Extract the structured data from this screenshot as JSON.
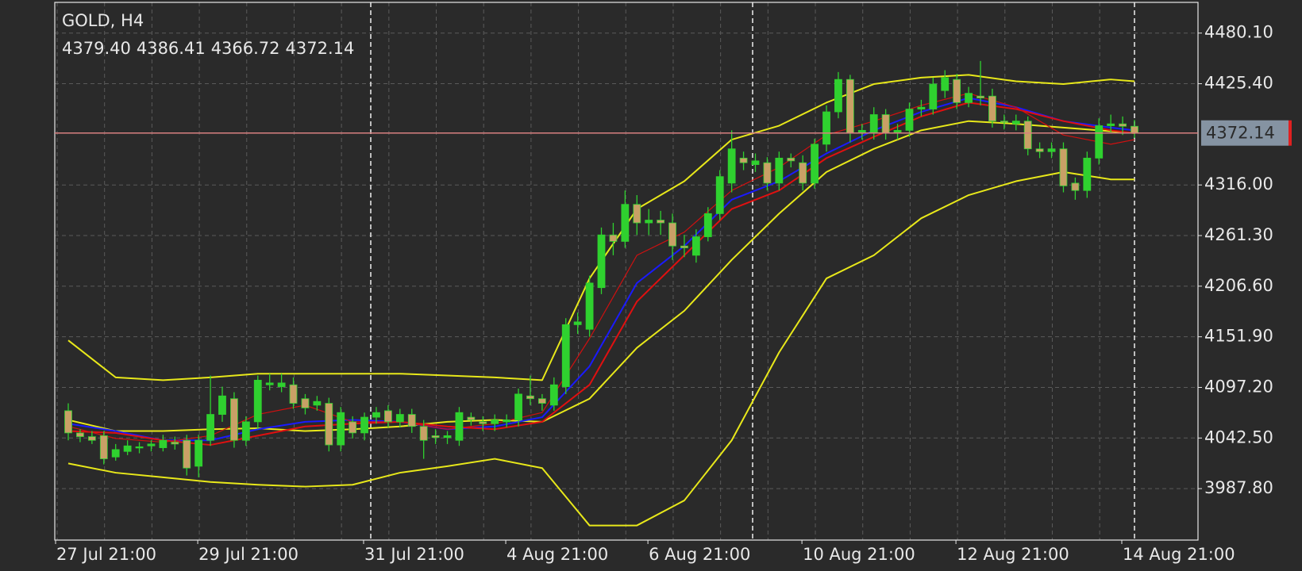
{
  "chart_data": {
    "type": "candlestick",
    "title": "GOLD, H4",
    "info_labels": [
      "4379.40",
      "4386.41",
      "4366.72",
      "4372.14"
    ],
    "categories": [
      "27 Jul 21:00",
      null,
      null,
      null,
      null,
      null,
      null,
      null,
      null,
      null,
      null,
      null,
      "29 Jul 21:00",
      null,
      null,
      null,
      null,
      null,
      null,
      null,
      null,
      null,
      null,
      null,
      null,
      null,
      "31 Jul 21:00",
      null,
      null,
      null,
      null,
      null,
      null,
      null,
      null,
      null,
      null,
      null,
      "4 Aug 21:00",
      null,
      null,
      null,
      null,
      null,
      null,
      null,
      null,
      null,
      null,
      null,
      "6 Aug 21:00",
      null,
      null,
      null,
      null,
      null,
      null,
      null,
      null,
      null,
      null,
      null,
      null,
      "10 Aug 21:00",
      null,
      null,
      null,
      null,
      null,
      null,
      null,
      null,
      null,
      null,
      null,
      null,
      "12 Aug 21:00",
      null,
      null,
      null,
      null,
      null,
      null,
      null,
      null,
      null,
      null,
      null,
      null,
      null,
      "14 Aug 21:00"
    ],
    "open": [
      4072,
      4048,
      4044,
      4045,
      4022,
      4028,
      4032,
      4034,
      4032,
      4038,
      4040,
      4012,
      4040,
      4068,
      4085,
      4040,
      4060,
      4100,
      4098,
      4100,
      4085,
      4078,
      4080,
      4035,
      4060,
      4048,
      4065,
      4072,
      4060,
      4068,
      4055,
      4045,
      4043,
      4040,
      4065,
      4060,
      4058,
      4060,
      4062,
      4088,
      4085,
      4078,
      4098,
      4165,
      4160,
      4205,
      4262,
      4255,
      4295,
      4275,
      4278,
      4275,
      4250,
      4240,
      4260,
      4285,
      4318,
      4345,
      4338,
      4340,
      4318,
      4345,
      4340,
      4318,
      4360,
      4395,
      4430,
      4372,
      4372,
      4392,
      4372,
      4375,
      4398,
      4398,
      4418,
      4430,
      4405,
      4412,
      4412,
      4385,
      4382,
      4385,
      4355,
      4352,
      4355,
      4318,
      4310,
      4345,
      4380,
      4382,
      4379.4
    ],
    "high": [
      4080,
      4052,
      4050,
      4050,
      4036,
      4040,
      4038,
      4040,
      4046,
      4044,
      4046,
      4046,
      4110,
      4098,
      4092,
      4066,
      4110,
      4112,
      4112,
      4108,
      4090,
      4088,
      4086,
      4076,
      4066,
      4070,
      4076,
      4078,
      4074,
      4074,
      4062,
      4052,
      4050,
      4076,
      4070,
      4066,
      4068,
      4068,
      4096,
      4110,
      4090,
      4108,
      4172,
      4178,
      4218,
      4270,
      4275,
      4310,
      4305,
      4290,
      4288,
      4285,
      4262,
      4268,
      4292,
      4332,
      4375,
      4352,
      4350,
      4346,
      4352,
      4350,
      4348,
      4366,
      4402,
      4438,
      4435,
      4382,
      4400,
      4398,
      4382,
      4405,
      4408,
      4432,
      4440,
      4436,
      4422,
      4450,
      4420,
      4392,
      4392,
      4390,
      4362,
      4362,
      4362,
      4324,
      4352,
      4388,
      4392,
      4390,
      4386.41
    ],
    "low": [
      4040,
      4038,
      4036,
      4014,
      4018,
      4024,
      4026,
      4028,
      4028,
      4030,
      4002,
      4000,
      4034,
      4060,
      4032,
      4034,
      4052,
      4094,
      4092,
      4074,
      4068,
      4072,
      4028,
      4028,
      4042,
      4040,
      4058,
      4054,
      4054,
      4048,
      4020,
      4036,
      4036,
      4034,
      4056,
      4050,
      4050,
      4054,
      4055,
      4078,
      4072,
      4072,
      4090,
      4155,
      4152,
      4198,
      4240,
      4248,
      4262,
      4262,
      4262,
      4235,
      4238,
      4232,
      4255,
      4278,
      4308,
      4332,
      4330,
      4310,
      4310,
      4335,
      4310,
      4312,
      4352,
      4388,
      4362,
      4365,
      4365,
      4365,
      4365,
      4368,
      4390,
      4392,
      4410,
      4398,
      4400,
      4402,
      4378,
      4376,
      4375,
      4348,
      4345,
      4345,
      4308,
      4300,
      4302,
      4338,
      4372,
      4370,
      4366.72
    ],
    "close": [
      4048,
      4044,
      4040,
      4020,
      4030,
      4034,
      4033,
      4036,
      4040,
      4036,
      4010,
      4040,
      4068,
      4088,
      4040,
      4060,
      4105,
      4102,
      4102,
      4080,
      4075,
      4082,
      4035,
      4070,
      4048,
      4065,
      4070,
      4060,
      4068,
      4055,
      4040,
      4043,
      4045,
      4070,
      4062,
      4058,
      4062,
      4062,
      4090,
      4085,
      4080,
      4100,
      4165,
      4168,
      4210,
      4262,
      4255,
      4295,
      4275,
      4278,
      4275,
      4250,
      4248,
      4260,
      4285,
      4325,
      4355,
      4340,
      4342,
      4318,
      4345,
      4342,
      4318,
      4360,
      4395,
      4430,
      4372,
      4375,
      4392,
      4372,
      4375,
      4398,
      4400,
      4425,
      4432,
      4405,
      4415,
      4410,
      4385,
      4384,
      4385,
      4355,
      4352,
      4355,
      4315,
      4310,
      4345,
      4380,
      4382,
      4379.4,
      4372.14
    ],
    "up_color": "#2fd12f",
    "down_color": "#c9a066",
    "wick_color": "#2fd12f",
    "line_x": [
      0,
      4,
      8,
      12,
      16,
      20,
      24,
      28,
      32,
      36,
      40,
      44,
      48,
      52,
      56,
      60,
      64,
      68,
      72,
      76,
      80,
      84,
      88,
      90
    ],
    "lines": [
      {
        "color": "#e8e81a",
        "values": [
          4148,
          4108,
          4105,
          4108,
          4112,
          4112,
          4112,
          4112,
          4110,
          4108,
          4105,
          4215,
          4290,
          4320,
          4365,
          4380,
          4405,
          4425,
          4432,
          4435,
          4428,
          4425,
          4430,
          4428
        ]
      },
      {
        "color": "#e8e81a",
        "values": [
          4015,
          4005,
          4000,
          3995,
          3992,
          3990,
          3992,
          4005,
          4012,
          4020,
          4010,
          3948,
          3948,
          3975,
          4040,
          4135,
          4215,
          4240,
          4280,
          4305,
          4320,
          4330,
          4322,
          4322
        ]
      },
      {
        "color": "#e8e81a",
        "values": [
          4062,
          4050,
          4050,
          4052,
          4053,
          4050,
          4052,
          4055,
          4060,
          4062,
          4060,
          4085,
          4140,
          4180,
          4235,
          4285,
          4330,
          4355,
          4375,
          4385,
          4382,
          4378,
          4374,
          4372
        ]
      },
      {
        "color": "#1a1aff",
        "values": [
          4058,
          4050,
          4040,
          4040,
          4052,
          4060,
          4062,
          4060,
          4052,
          4055,
          4065,
          4120,
          4210,
          4250,
          4300,
          4320,
          4350,
          4375,
          4395,
          4410,
          4400,
          4385,
          4378,
          4375
        ]
      },
      {
        "color": "#e01010",
        "values": [
          4050,
          4048,
          4040,
          4035,
          4045,
          4055,
          4058,
          4060,
          4055,
          4052,
          4060,
          4100,
          4190,
          4240,
          4290,
          4310,
          4345,
          4368,
          4390,
          4405,
          4398,
          4385,
          4375,
          4372
        ]
      },
      {
        "color": "#d01010",
        "values": [
          4055,
          4042,
          4038,
          4045,
          4068,
          4078,
          4060,
          4060,
          4052,
          4058,
          4070,
          4150,
          4240,
          4265,
          4310,
          4335,
          4370,
          4385,
          4402,
          4415,
          4400,
          4370,
          4360,
          4365
        ]
      }
    ],
    "ylim": [
      3932.2,
      4513.3
    ],
    "yticks": [
      {
        "value": 4480.1,
        "label": "4480.10"
      },
      {
        "value": 4425.4,
        "label": "4425.40"
      },
      {
        "value": 4316,
        "label": "4316.00"
      },
      {
        "value": 4261.3,
        "label": "4261.30"
      },
      {
        "value": 4206.6,
        "label": "4206.60"
      },
      {
        "value": 4151.9,
        "label": "4151.90"
      },
      {
        "value": 4097.2,
        "label": "4097.20"
      },
      {
        "value": 4042.5,
        "label": "4042.50"
      },
      {
        "value": 3987.8,
        "label": "3987.80"
      }
    ],
    "grid": true,
    "price_line_color": "#d88080"
  }
}
